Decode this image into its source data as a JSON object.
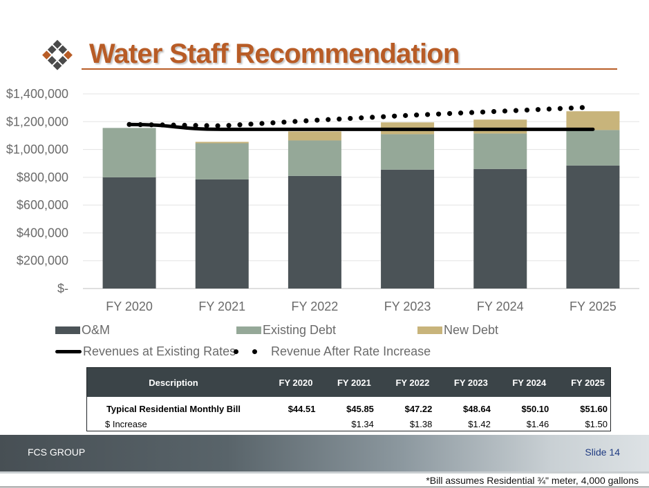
{
  "header": {
    "title": "Water Staff Recommendation"
  },
  "chart_data": {
    "type": "bar",
    "stacked": true,
    "categories": [
      "FY 2020",
      "FY 2021",
      "FY 2022",
      "FY 2023",
      "FY 2024",
      "FY 2025"
    ],
    "series": [
      {
        "name": "O&M",
        "type": "bar",
        "color": "#4b5357",
        "values": [
          800000,
          785000,
          810000,
          855000,
          860000,
          885000
        ]
      },
      {
        "name": "Existing Debt",
        "type": "bar",
        "color": "#95a898",
        "values": [
          355000,
          260000,
          255000,
          255000,
          255000,
          255000
        ]
      },
      {
        "name": "New Debt",
        "type": "bar",
        "color": "#c8b47b",
        "values": [
          0,
          10000,
          65000,
          85000,
          100000,
          135000
        ]
      },
      {
        "name": "Revenues at Existing Rates",
        "type": "line",
        "style": "solid",
        "color": "#000000",
        "values": [
          1180000,
          1145000,
          1145000,
          1145000,
          1145000,
          1145000
        ]
      },
      {
        "name": "Revenue After Rate Increase",
        "type": "line",
        "style": "dotted",
        "color": "#000000",
        "values": [
          1180000,
          1170000,
          1210000,
          1245000,
          1275000,
          1305000
        ]
      }
    ],
    "y_ticks": [
      "$-",
      "$200,000",
      "$400,000",
      "$600,000",
      "$800,000",
      "$1,000,000",
      "$1,200,000",
      "$1,400,000"
    ],
    "ylim": [
      0,
      1400000
    ],
    "grid": true,
    "legend_position": "bottom"
  },
  "table": {
    "headers": [
      "Description",
      "FY 2020",
      "FY 2021",
      "FY 2022",
      "FY 2023",
      "FY 2024",
      "FY 2025"
    ],
    "rows": [
      [
        "Typical Residential Monthly Bill",
        "$44.51",
        "$45.85",
        "$47.22",
        "$48.64",
        "$50.10",
        "$51.60"
      ],
      [
        "$ Increase",
        "",
        "$1.34",
        "$1.38",
        "$1.42",
        "$1.46",
        "$1.50"
      ]
    ]
  },
  "footer": {
    "company": "FCS GROUP",
    "slide": "Slide 14"
  },
  "footnote": "*Bill assumes Residential ¾\" meter, 4,000 gallons"
}
